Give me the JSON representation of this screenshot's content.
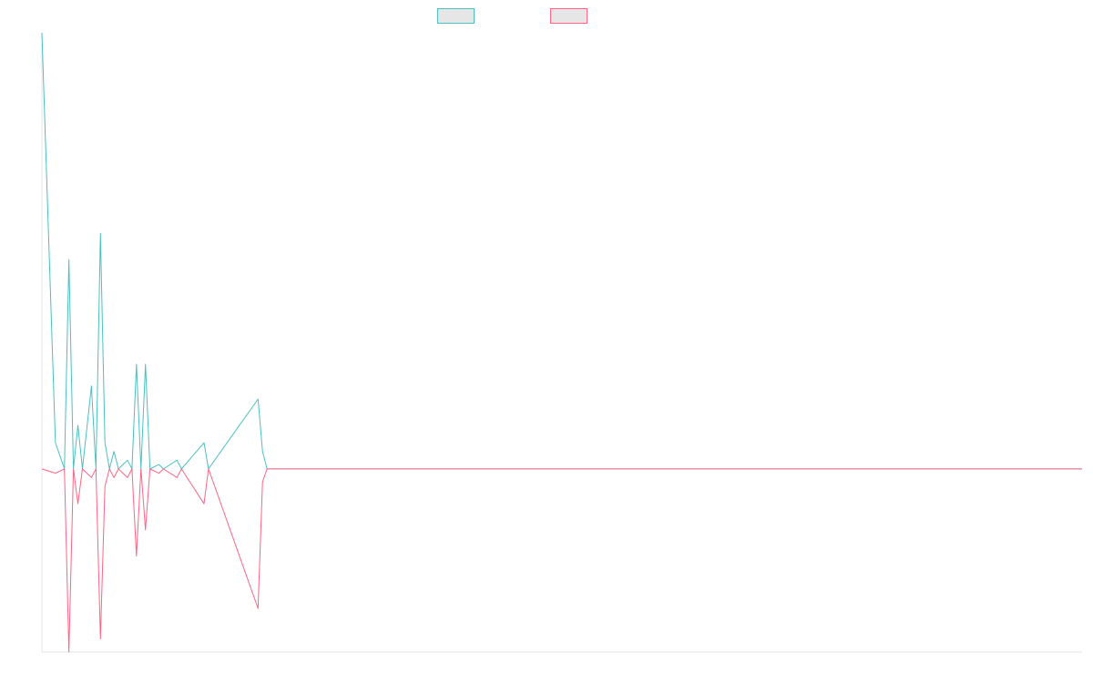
{
  "chart_data": {
    "type": "line",
    "title": "",
    "xlabel": "",
    "ylabel": "",
    "grid": false,
    "legend_placement": "top-center",
    "x_count": 232,
    "ylim": [
      -0.42,
      1.0
    ],
    "series": [
      {
        "color": "#4bc0c0",
        "legend_fill": "#e6e6e6",
        "points": [
          [
            0,
            1.0
          ],
          [
            3,
            0.06
          ],
          [
            5,
            0.0
          ],
          [
            6,
            0.48
          ],
          [
            7,
            0.0
          ],
          [
            8,
            0.1
          ],
          [
            9,
            0.0
          ],
          [
            11,
            0.19
          ],
          [
            12,
            0.0
          ],
          [
            13,
            0.54
          ],
          [
            14,
            0.06
          ],
          [
            15,
            0.0
          ],
          [
            16,
            0.04
          ],
          [
            17,
            0.0
          ],
          [
            19,
            0.02
          ],
          [
            20,
            0.0
          ],
          [
            21,
            0.24
          ],
          [
            22,
            0.0
          ],
          [
            23,
            0.24
          ],
          [
            24,
            0.0
          ],
          [
            26,
            0.01
          ],
          [
            27,
            0.0
          ],
          [
            30,
            0.02
          ],
          [
            31,
            0.0
          ],
          [
            36,
            0.06
          ],
          [
            37,
            0.0
          ],
          [
            48,
            0.16
          ],
          [
            49,
            0.04
          ],
          [
            50,
            0.0
          ],
          [
            231,
            0.0
          ]
        ]
      },
      {
        "color": "#ff6384",
        "legend_fill": "#e6e6e6",
        "points": [
          [
            0,
            0.0
          ],
          [
            3,
            -0.01
          ],
          [
            5,
            0.0
          ],
          [
            6,
            -0.42
          ],
          [
            7,
            0.0
          ],
          [
            8,
            -0.08
          ],
          [
            9,
            0.0
          ],
          [
            11,
            -0.02
          ],
          [
            12,
            0.0
          ],
          [
            13,
            -0.39
          ],
          [
            14,
            -0.04
          ],
          [
            15,
            0.0
          ],
          [
            16,
            -0.02
          ],
          [
            17,
            0.0
          ],
          [
            19,
            -0.02
          ],
          [
            20,
            0.0
          ],
          [
            21,
            -0.2
          ],
          [
            22,
            0.0
          ],
          [
            23,
            -0.14
          ],
          [
            24,
            0.0
          ],
          [
            26,
            -0.01
          ],
          [
            27,
            0.0
          ],
          [
            30,
            -0.02
          ],
          [
            31,
            0.0
          ],
          [
            36,
            -0.08
          ],
          [
            37,
            0.0
          ],
          [
            48,
            -0.32
          ],
          [
            49,
            -0.03
          ],
          [
            50,
            0.0
          ],
          [
            231,
            0.0
          ]
        ]
      }
    ]
  }
}
